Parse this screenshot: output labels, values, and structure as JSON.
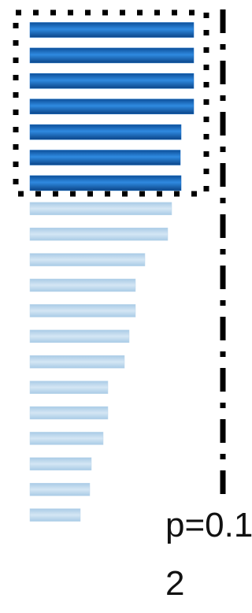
{
  "chart_data": {
    "type": "bar",
    "values": [
      208,
      208,
      208,
      208,
      192,
      191,
      192,
      180,
      175,
      146,
      134,
      134,
      126,
      120,
      99,
      99,
      93,
      78,
      76,
      64
    ],
    "colors": [
      "#1a6fc4",
      "#1a6fc4",
      "#1a6fc4",
      "#1a6fc4",
      "#1a6fc4",
      "#1a6fc4",
      "#1a6fc4",
      "#bcd7ec",
      "#bcd7ec",
      "#bcd7ec",
      "#bcd7ec",
      "#bcd7ec",
      "#bcd7ec",
      "#bcd7ec",
      "#bcd7ec",
      "#bcd7ec",
      "#bcd7ec",
      "#bcd7ec",
      "#bcd7ec",
      "#bcd7ec"
    ],
    "annotation": "p=0.12"
  }
}
